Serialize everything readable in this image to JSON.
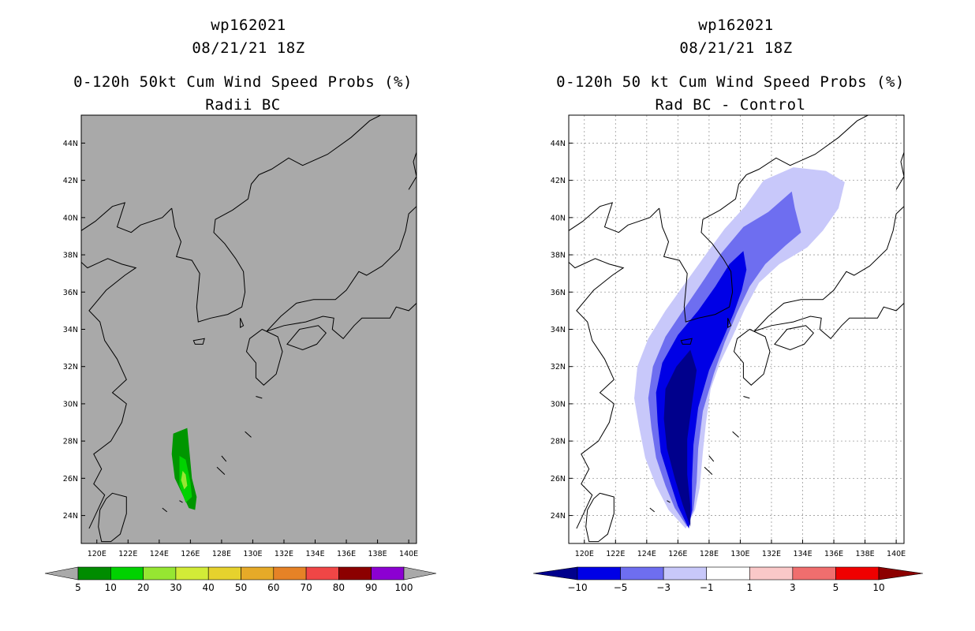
{
  "chart_data": [
    {
      "type": "heatmap",
      "title_lines": [
        "wp162021",
        "08/21/21 18Z",
        "0-120h 50kt Cum Wind Speed Probs (%)",
        "Radii BC"
      ],
      "x_ticks": [
        "120E",
        "122E",
        "124E",
        "126E",
        "128E",
        "130E",
        "132E",
        "134E",
        "136E",
        "138E",
        "140E"
      ],
      "y_ticks": [
        "24N",
        "26N",
        "28N",
        "30N",
        "32N",
        "34N",
        "36N",
        "38N",
        "40N",
        "42N",
        "44N"
      ],
      "lon_range": [
        119,
        140.5
      ],
      "lat_range": [
        22.5,
        45.5
      ],
      "background": "#a9a9a9",
      "grid": false,
      "colorbar": {
        "labels": [
          "5",
          "10",
          "20",
          "30",
          "40",
          "50",
          "60",
          "70",
          "80",
          "90",
          "100"
        ],
        "colors": [
          "#008c00",
          "#00d200",
          "#96e632",
          "#d2eb37",
          "#e6d22d",
          "#e6aa28",
          "#e68226",
          "#f04646",
          "#8c0000",
          "#8c00d2"
        ]
      },
      "contours": [
        {
          "level": "5-10",
          "color": "#009600",
          "points": [
            [
              124.9,
              28.4
            ],
            [
              125.8,
              28.7
            ],
            [
              126.1,
              26.0
            ],
            [
              126.4,
              25.0
            ],
            [
              126.3,
              24.3
            ],
            [
              125.9,
              24.4
            ],
            [
              125.4,
              25.3
            ],
            [
              125.0,
              26.0
            ],
            [
              124.8,
              27.3
            ]
          ]
        },
        {
          "level": "10-20",
          "color": "#00d200",
          "points": [
            [
              125.3,
              27.2
            ],
            [
              125.7,
              27.0
            ],
            [
              126.0,
              25.8
            ],
            [
              126.1,
              25.0
            ],
            [
              125.7,
              24.7
            ],
            [
              125.3,
              25.6
            ]
          ]
        },
        {
          "level": "20-30",
          "color": "#96e632",
          "points": [
            [
              125.5,
              26.4
            ],
            [
              125.7,
              26.2
            ],
            [
              125.8,
              25.6
            ],
            [
              125.6,
              25.4
            ],
            [
              125.4,
              25.9
            ]
          ]
        }
      ]
    },
    {
      "type": "heatmap",
      "title_lines": [
        "wp162021",
        "08/21/21 18Z",
        "0-120h 50 kt Cum Wind Speed Probs (%)",
        "Rad BC - Control"
      ],
      "x_ticks": [
        "120E",
        "122E",
        "124E",
        "126E",
        "128E",
        "130E",
        "132E",
        "134E",
        "136E",
        "138E",
        "140E"
      ],
      "y_ticks": [
        "24N",
        "26N",
        "28N",
        "30N",
        "32N",
        "34N",
        "36N",
        "38N",
        "40N",
        "42N",
        "44N"
      ],
      "lon_range": [
        119,
        140.5
      ],
      "lat_range": [
        22.5,
        45.5
      ],
      "background": "#ffffff",
      "grid": true,
      "colorbar": {
        "labels": [
          "-10",
          "-5",
          "-3",
          "-1",
          "1",
          "3",
          "5",
          "10"
        ],
        "colors": [
          "#00008c",
          "#0000e6",
          "#6e6ef0",
          "#c8c8fa",
          "#ffffff",
          "#fac8c8",
          "#f06e6e",
          "#f00000",
          "#8c0000"
        ]
      },
      "contours": [
        {
          "level": "-1 to -3",
          "color": "#c8c8fa",
          "points": [
            [
              126.5,
              23.3
            ],
            [
              125.4,
              24.3
            ],
            [
              124.6,
              25.6
            ],
            [
              123.9,
              27.1
            ],
            [
              123.5,
              28.8
            ],
            [
              123.2,
              30.3
            ],
            [
              123.4,
              32.0
            ],
            [
              124.1,
              33.5
            ],
            [
              125.2,
              35.0
            ],
            [
              126.4,
              36.4
            ],
            [
              127.6,
              37.8
            ],
            [
              129.0,
              39.4
            ],
            [
              130.3,
              40.6
            ],
            [
              131.5,
              42.0
            ],
            [
              133.4,
              42.7
            ],
            [
              135.5,
              42.5
            ],
            [
              136.7,
              41.9
            ],
            [
              136.3,
              40.5
            ],
            [
              135.3,
              39.3
            ],
            [
              134.3,
              38.4
            ],
            [
              132.5,
              37.5
            ],
            [
              131.2,
              36.5
            ],
            [
              130.3,
              35.1
            ],
            [
              129.5,
              33.6
            ],
            [
              128.7,
              32.2
            ],
            [
              128.1,
              30.8
            ],
            [
              127.8,
              29.0
            ],
            [
              127.6,
              27.4
            ],
            [
              127.4,
              25.5
            ],
            [
              127.1,
              24.3
            ]
          ]
        },
        {
          "level": "-3 to -5",
          "color": "#6e6ef0",
          "points": [
            [
              126.6,
              23.4
            ],
            [
              125.8,
              24.4
            ],
            [
              125.2,
              25.6
            ],
            [
              124.6,
              27.1
            ],
            [
              124.3,
              28.7
            ],
            [
              124.1,
              30.3
            ],
            [
              124.4,
              32.0
            ],
            [
              125.2,
              33.6
            ],
            [
              126.4,
              35.1
            ],
            [
              127.7,
              36.7
            ],
            [
              128.8,
              38.1
            ],
            [
              130.2,
              39.5
            ],
            [
              131.8,
              40.3
            ],
            [
              133.3,
              41.4
            ],
            [
              133.5,
              40.5
            ],
            [
              133.9,
              39.2
            ],
            [
              132.9,
              38.5
            ],
            [
              131.6,
              37.5
            ],
            [
              130.6,
              36.3
            ],
            [
              129.8,
              34.9
            ],
            [
              129.0,
              33.3
            ],
            [
              128.3,
              31.6
            ],
            [
              127.6,
              29.6
            ],
            [
              127.3,
              27.6
            ],
            [
              127.2,
              25.8
            ],
            [
              127.0,
              24.3
            ]
          ]
        },
        {
          "level": "-5 to -10",
          "color": "#0000e6",
          "points": [
            [
              126.7,
              23.3
            ],
            [
              126.0,
              24.5
            ],
            [
              125.5,
              25.8
            ],
            [
              124.9,
              27.4
            ],
            [
              124.7,
              29.0
            ],
            [
              124.6,
              30.6
            ],
            [
              125.0,
              32.2
            ],
            [
              126.0,
              33.7
            ],
            [
              127.3,
              35.0
            ],
            [
              128.4,
              36.3
            ],
            [
              129.3,
              37.5
            ],
            [
              130.2,
              38.2
            ],
            [
              130.4,
              37.2
            ],
            [
              130.1,
              36.1
            ],
            [
              129.6,
              34.9
            ],
            [
              128.9,
              33.5
            ],
            [
              128.0,
              31.8
            ],
            [
              127.3,
              29.8
            ],
            [
              127.0,
              27.8
            ],
            [
              126.9,
              25.9
            ],
            [
              126.9,
              24.3
            ]
          ]
        },
        {
          "level": "< -10",
          "color": "#00008c",
          "points": [
            [
              126.8,
              23.4
            ],
            [
              126.3,
              24.6
            ],
            [
              125.8,
              26.0
            ],
            [
              125.3,
              27.6
            ],
            [
              125.1,
              29.2
            ],
            [
              125.2,
              30.8
            ],
            [
              125.9,
              32.0
            ],
            [
              126.8,
              32.9
            ],
            [
              127.2,
              31.8
            ],
            [
              126.9,
              30.0
            ],
            [
              126.6,
              28.1
            ],
            [
              126.6,
              26.2
            ],
            [
              126.8,
              24.5
            ]
          ]
        }
      ]
    }
  ],
  "coast": {
    "china": [
      [
        119.5,
        23.3
      ],
      [
        120.0,
        24.2
      ],
      [
        120.5,
        25.1
      ],
      [
        119.8,
        25.7
      ],
      [
        120.3,
        26.5
      ],
      [
        119.8,
        27.3
      ],
      [
        120.9,
        28.0
      ],
      [
        121.6,
        29.0
      ],
      [
        121.9,
        30.0
      ],
      [
        121.0,
        30.6
      ],
      [
        121.9,
        31.3
      ],
      [
        121.3,
        32.4
      ],
      [
        120.5,
        33.4
      ],
      [
        120.2,
        34.4
      ],
      [
        119.5,
        35.0
      ],
      [
        120.6,
        36.1
      ],
      [
        121.8,
        36.9
      ],
      [
        122.5,
        37.3
      ],
      [
        121.6,
        37.5
      ],
      [
        120.7,
        37.8
      ],
      [
        119.4,
        37.3
      ],
      [
        119.0,
        37.6
      ]
    ],
    "bohai_liaodong": [
      [
        119.0,
        39.3
      ],
      [
        119.9,
        39.8
      ],
      [
        121.0,
        40.6
      ],
      [
        121.8,
        40.8
      ],
      [
        121.3,
        39.5
      ],
      [
        122.2,
        39.2
      ],
      [
        122.8,
        39.6
      ],
      [
        124.2,
        40.0
      ],
      [
        124.8,
        40.5
      ]
    ],
    "korea": [
      [
        124.8,
        40.5
      ],
      [
        125.0,
        39.5
      ],
      [
        125.4,
        38.7
      ],
      [
        125.1,
        37.9
      ],
      [
        126.1,
        37.7
      ],
      [
        126.6,
        37.0
      ],
      [
        126.5,
        36.1
      ],
      [
        126.4,
        35.2
      ],
      [
        126.5,
        34.4
      ],
      [
        127.3,
        34.6
      ],
      [
        128.4,
        34.8
      ],
      [
        129.3,
        35.2
      ],
      [
        129.5,
        36.0
      ],
      [
        129.4,
        37.1
      ],
      [
        128.9,
        37.8
      ],
      [
        128.2,
        38.6
      ],
      [
        127.5,
        39.2
      ],
      [
        127.6,
        39.9
      ],
      [
        128.7,
        40.4
      ],
      [
        129.7,
        41.0
      ],
      [
        129.9,
        41.8
      ],
      [
        130.4,
        42.3
      ]
    ],
    "russia": [
      [
        130.4,
        42.3
      ],
      [
        131.2,
        42.6
      ],
      [
        132.3,
        43.2
      ],
      [
        133.2,
        42.8
      ],
      [
        134.8,
        43.4
      ],
      [
        136.3,
        44.3
      ],
      [
        137.5,
        45.2
      ],
      [
        138.2,
        45.5
      ]
    ],
    "honshu": [
      [
        130.9,
        33.9
      ],
      [
        131.8,
        34.7
      ],
      [
        132.8,
        35.4
      ],
      [
        133.9,
        35.6
      ],
      [
        135.3,
        35.6
      ],
      [
        136.0,
        36.1
      ],
      [
        136.8,
        37.1
      ],
      [
        137.3,
        36.9
      ],
      [
        138.3,
        37.4
      ],
      [
        139.4,
        38.3
      ],
      [
        139.8,
        39.3
      ],
      [
        140.0,
        40.2
      ],
      [
        140.5,
        40.6
      ]
    ],
    "honshu_south": [
      [
        130.9,
        33.9
      ],
      [
        132.0,
        34.2
      ],
      [
        133.4,
        34.4
      ],
      [
        134.5,
        34.7
      ],
      [
        135.2,
        34.6
      ],
      [
        135.1,
        34.0
      ],
      [
        135.8,
        33.5
      ],
      [
        136.5,
        34.2
      ],
      [
        137.0,
        34.6
      ],
      [
        137.8,
        34.6
      ],
      [
        138.8,
        34.6
      ],
      [
        139.2,
        35.2
      ],
      [
        140.0,
        35.0
      ],
      [
        140.5,
        35.4
      ]
    ],
    "kyushu": [
      [
        129.8,
        33.5
      ],
      [
        130.6,
        34.0
      ],
      [
        131.6,
        33.6
      ],
      [
        131.9,
        32.8
      ],
      [
        131.5,
        31.6
      ],
      [
        130.7,
        31.0
      ],
      [
        130.2,
        31.4
      ],
      [
        130.2,
        32.2
      ],
      [
        129.6,
        32.8
      ]
    ],
    "shikoku": [
      [
        132.2,
        33.2
      ],
      [
        133.0,
        34.0
      ],
      [
        134.2,
        34.2
      ],
      [
        134.7,
        33.8
      ],
      [
        134.1,
        33.2
      ],
      [
        133.2,
        32.9
      ]
    ],
    "taiwan": [
      [
        121.0,
        25.2
      ],
      [
        121.9,
        25.0
      ],
      [
        121.9,
        24.1
      ],
      [
        121.5,
        23.0
      ],
      [
        120.9,
        22.6
      ],
      [
        120.3,
        22.6
      ],
      [
        120.1,
        23.4
      ],
      [
        120.2,
        24.3
      ],
      [
        120.6,
        24.9
      ]
    ],
    "jeju": [
      [
        126.2,
        33.4
      ],
      [
        126.9,
        33.5
      ],
      [
        126.8,
        33.2
      ],
      [
        126.3,
        33.2
      ]
    ],
    "tsushima": [
      [
        129.2,
        34.6
      ],
      [
        129.4,
        34.2
      ],
      [
        129.2,
        34.1
      ]
    ],
    "hokkaido": [
      [
        140.0,
        41.5
      ],
      [
        140.5,
        42.2
      ],
      [
        140.3,
        43.0
      ],
      [
        140.5,
        43.5
      ]
    ],
    "islands": [
      [
        [
          129.5,
          28.5
        ],
        [
          129.9,
          28.2
        ]
      ],
      [
        [
          128.0,
          27.2
        ],
        [
          128.3,
          26.9
        ]
      ],
      [
        [
          127.7,
          26.6
        ],
        [
          128.2,
          26.2
        ]
      ],
      [
        [
          124.2,
          24.4
        ],
        [
          124.5,
          24.2
        ]
      ],
      [
        [
          125.3,
          24.8
        ],
        [
          125.5,
          24.7
        ]
      ],
      [
        [
          130.2,
          30.4
        ],
        [
          130.6,
          30.3
        ]
      ]
    ]
  }
}
